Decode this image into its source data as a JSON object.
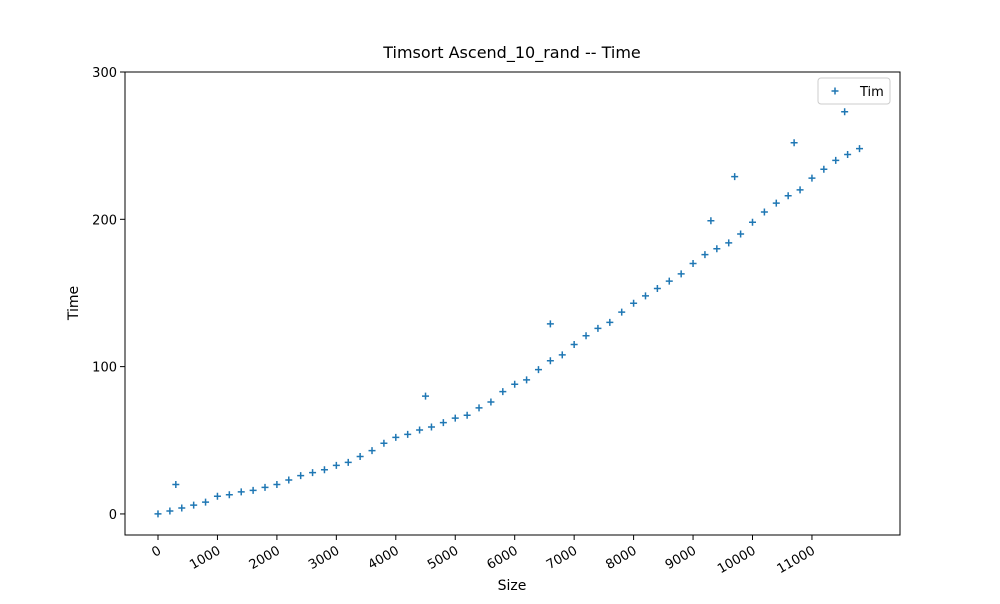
{
  "chart_data": {
    "type": "scatter",
    "title": "Timsort Ascend_10_rand -- Time",
    "xlabel": "Size",
    "ylabel": "Time",
    "xlim": [
      -555,
      12481
    ],
    "ylim": [
      -14.3,
      300
    ],
    "xticks": [
      0,
      1000,
      2000,
      3000,
      4000,
      5000,
      6000,
      7000,
      8000,
      9000,
      10000,
      11000
    ],
    "yticks": [
      0,
      100,
      200,
      300
    ],
    "legend": "upper right",
    "marker": "+",
    "series": [
      {
        "name": "Tim",
        "color": "#1f77b4",
        "x": [
          0,
          200,
          400,
          600,
          800,
          1000,
          1200,
          1400,
          1600,
          1800,
          2000,
          2200,
          2400,
          2600,
          2800,
          3000,
          3200,
          3400,
          3600,
          3800,
          4000,
          4200,
          4400,
          4600,
          4800,
          5000,
          5200,
          5400,
          5600,
          5800,
          6000,
          6200,
          6400,
          6600,
          6800,
          7000,
          7200,
          7400,
          7600,
          7800,
          8000,
          8200,
          8400,
          8600,
          8800,
          9000,
          9200,
          9400,
          9600,
          9800,
          10000,
          10200,
          10400,
          10600,
          10800,
          11000,
          11200,
          11400,
          11600,
          11800,
          300,
          4500,
          6600,
          9300,
          9700,
          10700,
          11550
        ],
        "values": [
          0,
          2,
          4,
          6,
          8,
          12,
          13,
          15,
          16,
          18,
          20,
          23,
          26,
          28,
          30,
          33,
          35,
          39,
          43,
          48,
          52,
          54,
          57,
          59,
          62,
          65,
          67,
          72,
          76,
          83,
          88,
          91,
          98,
          104,
          108,
          115,
          121,
          126,
          130,
          137,
          143,
          148,
          153,
          158,
          163,
          170,
          176,
          180,
          184,
          190,
          198,
          205,
          211,
          216,
          220,
          228,
          234,
          240,
          244,
          248,
          20,
          80,
          129,
          199,
          229,
          252,
          273
        ]
      }
    ]
  }
}
